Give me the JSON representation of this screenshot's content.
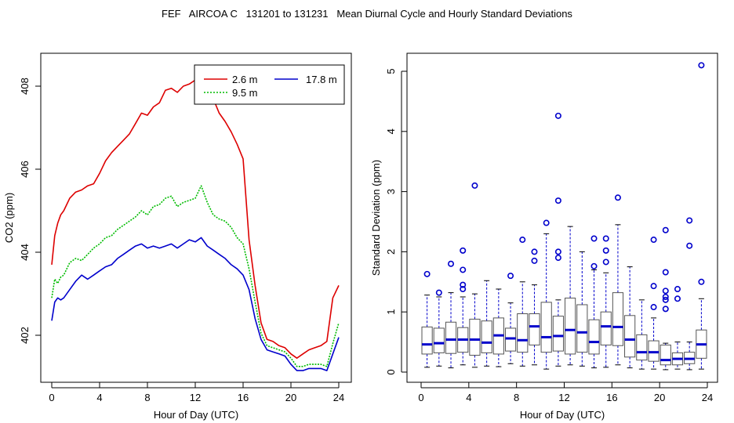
{
  "page_title": "FEF   AIRCOA C   131201 to 131231   Mean Diurnal Cycle and Hourly Standard Deviations",
  "chart_data": [
    {
      "type": "line",
      "title": "",
      "xlabel": "Hour of Day (UTC)",
      "ylabel": "CO2 (ppm)",
      "xlim": [
        0,
        24
      ],
      "ylim": [
        401.0,
        408.5
      ],
      "xticks": [
        0,
        4,
        8,
        12,
        16,
        20,
        24
      ],
      "xtick_labels": [
        "0",
        "4",
        "8",
        "12",
        "16",
        "20",
        "24"
      ],
      "yticks": [
        402,
        404,
        406,
        408
      ],
      "ytick_labels": [
        "402",
        "404",
        "406",
        "408"
      ],
      "legend": {
        "placement": "top-right",
        "entries": [
          {
            "label": "2.6 m",
            "color": "#dd0000"
          },
          {
            "label": "9.5 m",
            "color": "#00bb00",
            "dash": "dotted"
          },
          {
            "label": "17.8 m",
            "color": "#0000cc"
          }
        ]
      },
      "x": [
        0,
        0.25,
        0.5,
        0.75,
        1,
        1.5,
        2,
        2.5,
        3,
        3.5,
        4,
        4.5,
        5,
        5.5,
        6,
        6.5,
        7,
        7.5,
        8,
        8.5,
        9,
        9.5,
        10,
        10.5,
        11,
        11.5,
        12,
        12.5,
        13,
        13.5,
        14,
        14.5,
        15,
        15.5,
        16,
        16.5,
        17,
        17.5,
        18,
        18.5,
        19,
        19.5,
        20,
        20.5,
        21,
        21.5,
        22,
        22.5,
        23,
        23.5,
        24
      ],
      "series": [
        {
          "name": "2.6 m",
          "color": "#dd0000",
          "values": [
            403.7,
            404.4,
            404.7,
            404.9,
            405.0,
            405.3,
            405.45,
            405.5,
            405.6,
            405.65,
            405.9,
            406.2,
            406.4,
            406.55,
            406.7,
            406.85,
            407.1,
            407.35,
            407.3,
            407.5,
            407.6,
            407.9,
            407.95,
            407.85,
            408.0,
            408.05,
            408.15,
            408.25,
            408.0,
            407.7,
            407.35,
            407.15,
            406.9,
            406.6,
            406.25,
            404.3,
            403.2,
            402.3,
            401.9,
            401.85,
            401.75,
            401.7,
            401.55,
            401.45,
            401.55,
            401.65,
            401.7,
            401.75,
            401.85,
            402.9,
            403.2
          ]
        },
        {
          "name": "9.5 m",
          "color": "#00bb00",
          "values": [
            402.9,
            403.35,
            403.25,
            403.4,
            403.45,
            403.75,
            403.85,
            403.8,
            403.95,
            404.1,
            404.2,
            404.35,
            404.4,
            404.55,
            404.65,
            404.75,
            404.85,
            405.0,
            404.9,
            405.1,
            405.15,
            405.3,
            405.35,
            405.1,
            405.2,
            405.25,
            405.3,
            405.6,
            405.2,
            404.9,
            404.8,
            404.75,
            404.6,
            404.35,
            404.2,
            403.6,
            402.8,
            402.05,
            401.75,
            401.7,
            401.65,
            401.6,
            401.45,
            401.25,
            401.25,
            401.3,
            401.3,
            401.3,
            401.25,
            401.8,
            402.3
          ]
        },
        {
          "name": "17.8 m",
          "color": "#0000cc",
          "values": [
            402.35,
            402.8,
            402.9,
            402.85,
            402.9,
            403.1,
            403.3,
            403.45,
            403.35,
            403.45,
            403.55,
            403.65,
            403.7,
            403.85,
            403.95,
            404.05,
            404.15,
            404.2,
            404.1,
            404.15,
            404.1,
            404.15,
            404.2,
            404.1,
            404.2,
            404.3,
            404.25,
            404.35,
            404.15,
            404.05,
            403.95,
            403.85,
            403.7,
            403.6,
            403.45,
            403.1,
            402.4,
            401.9,
            401.65,
            401.6,
            401.55,
            401.5,
            401.3,
            401.15,
            401.15,
            401.2,
            401.2,
            401.2,
            401.15,
            401.55,
            401.95
          ]
        }
      ]
    },
    {
      "type": "box",
      "title": "",
      "xlabel": "Hour of Day (UTC)",
      "ylabel": "Standard Deviation (ppm)",
      "xlim": [
        -0.5,
        24.5
      ],
      "ylim": [
        0,
        5.2
      ],
      "xticks": [
        0,
        4,
        8,
        12,
        16,
        20,
        24
      ],
      "xtick_labels": [
        "0",
        "4",
        "8",
        "12",
        "16",
        "20",
        "24"
      ],
      "yticks": [
        0,
        1,
        2,
        3,
        4,
        5
      ],
      "ytick_labels": [
        "0",
        "1",
        "2",
        "3",
        "4",
        "5"
      ],
      "box_color": "#555555",
      "median_color": "#0000cc",
      "whisker_color": "#0000cc",
      "outlier_color": "#0000cc",
      "boxes": [
        {
          "hour": 0.5,
          "q1": 0.3,
          "median": 0.46,
          "q3": 0.75,
          "whisker_low": 0.08,
          "whisker_high": 1.28,
          "outliers": [
            1.63
          ]
        },
        {
          "hour": 1.5,
          "q1": 0.32,
          "median": 0.48,
          "q3": 0.73,
          "whisker_low": 0.1,
          "whisker_high": 1.25,
          "outliers": [
            1.32
          ]
        },
        {
          "hour": 2.5,
          "q1": 0.31,
          "median": 0.54,
          "q3": 0.83,
          "whisker_low": 0.07,
          "whisker_high": 1.32,
          "outliers": [
            1.8
          ]
        },
        {
          "hour": 3.5,
          "q1": 0.33,
          "median": 0.54,
          "q3": 0.74,
          "whisker_low": 0.12,
          "whisker_high": 1.25,
          "outliers": [
            1.38,
            1.45,
            1.7,
            2.02
          ]
        },
        {
          "hour": 4.5,
          "q1": 0.28,
          "median": 0.54,
          "q3": 0.88,
          "whisker_low": 0.08,
          "whisker_high": 1.3,
          "outliers": [
            3.1
          ]
        },
        {
          "hour": 5.5,
          "q1": 0.32,
          "median": 0.49,
          "q3": 0.85,
          "whisker_low": 0.1,
          "whisker_high": 1.52,
          "outliers": []
        },
        {
          "hour": 6.5,
          "q1": 0.3,
          "median": 0.61,
          "q3": 0.9,
          "whisker_low": 0.09,
          "whisker_high": 1.38,
          "outliers": []
        },
        {
          "hour": 7.5,
          "q1": 0.35,
          "median": 0.56,
          "q3": 0.73,
          "whisker_low": 0.14,
          "whisker_high": 1.15,
          "outliers": [
            1.6
          ]
        },
        {
          "hour": 8.5,
          "q1": 0.33,
          "median": 0.53,
          "q3": 0.97,
          "whisker_low": 0.1,
          "whisker_high": 1.5,
          "outliers": [
            2.2
          ]
        },
        {
          "hour": 9.5,
          "q1": 0.45,
          "median": 0.76,
          "q3": 0.97,
          "whisker_low": 0.12,
          "whisker_high": 1.45,
          "outliers": [
            1.85,
            2.0
          ]
        },
        {
          "hour": 10.5,
          "q1": 0.33,
          "median": 0.58,
          "q3": 1.16,
          "whisker_low": 0.05,
          "whisker_high": 2.3,
          "outliers": [
            2.48
          ]
        },
        {
          "hour": 11.5,
          "q1": 0.35,
          "median": 0.6,
          "q3": 0.93,
          "whisker_low": 0.1,
          "whisker_high": 1.2,
          "outliers": [
            1.9,
            2.0,
            2.85,
            4.26
          ]
        },
        {
          "hour": 12.5,
          "q1": 0.3,
          "median": 0.7,
          "q3": 1.23,
          "whisker_low": 0.12,
          "whisker_high": 2.42,
          "outliers": []
        },
        {
          "hour": 13.5,
          "q1": 0.33,
          "median": 0.66,
          "q3": 1.12,
          "whisker_low": 0.1,
          "whisker_high": 2.0,
          "outliers": []
        },
        {
          "hour": 14.5,
          "q1": 0.3,
          "median": 0.5,
          "q3": 0.87,
          "whisker_low": 0.07,
          "whisker_high": 1.7,
          "outliers": [
            1.76,
            2.22
          ]
        },
        {
          "hour": 15.5,
          "q1": 0.45,
          "median": 0.76,
          "q3": 1.0,
          "whisker_low": 0.08,
          "whisker_high": 1.65,
          "outliers": [
            1.83,
            2.02,
            2.22
          ]
        },
        {
          "hour": 16.5,
          "q1": 0.44,
          "median": 0.75,
          "q3": 1.32,
          "whisker_low": 0.12,
          "whisker_high": 2.45,
          "outliers": [
            2.9
          ]
        },
        {
          "hour": 17.5,
          "q1": 0.25,
          "median": 0.54,
          "q3": 0.94,
          "whisker_low": 0.07,
          "whisker_high": 1.75,
          "outliers": []
        },
        {
          "hour": 18.5,
          "q1": 0.2,
          "median": 0.33,
          "q3": 0.62,
          "whisker_low": 0.05,
          "whisker_high": 1.2,
          "outliers": []
        },
        {
          "hour": 19.5,
          "q1": 0.18,
          "median": 0.33,
          "q3": 0.52,
          "whisker_low": 0.05,
          "whisker_high": 0.9,
          "outliers": [
            1.08,
            1.43,
            2.2
          ]
        },
        {
          "hour": 20.5,
          "q1": 0.12,
          "median": 0.2,
          "q3": 0.45,
          "whisker_low": 0.04,
          "whisker_high": 0.48,
          "outliers": [
            1.05,
            1.2,
            1.25,
            1.35,
            1.66,
            2.36
          ]
        },
        {
          "hour": 21.5,
          "q1": 0.12,
          "median": 0.22,
          "q3": 0.32,
          "whisker_low": 0.05,
          "whisker_high": 0.5,
          "outliers": [
            1.22,
            1.38
          ]
        },
        {
          "hour": 22.5,
          "q1": 0.14,
          "median": 0.22,
          "q3": 0.33,
          "whisker_low": 0.04,
          "whisker_high": 0.5,
          "outliers": [
            2.1,
            2.52
          ]
        },
        {
          "hour": 23.5,
          "q1": 0.23,
          "median": 0.46,
          "q3": 0.7,
          "whisker_low": 0.05,
          "whisker_high": 1.22,
          "outliers": [
            1.5,
            5.1
          ]
        }
      ]
    }
  ]
}
